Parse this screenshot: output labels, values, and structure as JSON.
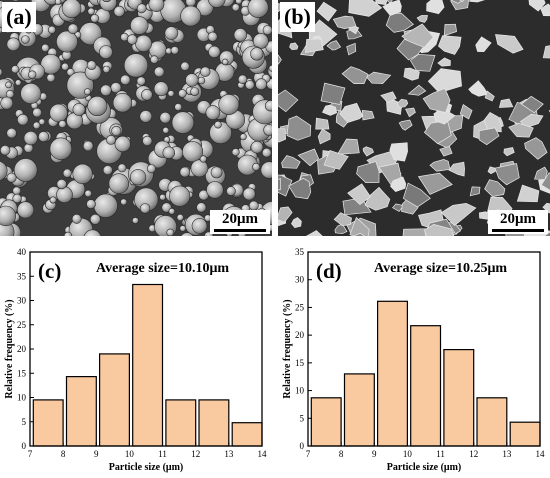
{
  "panels": {
    "a": {
      "label": "(a)",
      "scale_bar": "20μm"
    },
    "b": {
      "label": "(b)",
      "scale_bar": "20μm"
    }
  },
  "chart_data": [
    {
      "type": "bar",
      "label": "(c)",
      "annotation": "Average size=10.10μm",
      "xlabel": "Particle size (μm)",
      "ylabel": "Relative frequency (%)",
      "xlim": [
        7,
        14
      ],
      "ylim": [
        0,
        40
      ],
      "xticks": [
        7,
        8,
        9,
        10,
        11,
        12,
        13,
        14
      ],
      "yticks": [
        0,
        5,
        10,
        15,
        20,
        25,
        30,
        35,
        40
      ],
      "bins": [
        [
          7.1,
          8.0
        ],
        [
          8.1,
          9.0
        ],
        [
          9.1,
          10.0
        ],
        [
          10.1,
          11.0
        ],
        [
          11.1,
          12.0
        ],
        [
          12.1,
          13.0
        ],
        [
          13.1,
          14.0
        ]
      ],
      "values": [
        9.5,
        14.3,
        19.0,
        33.3,
        9.5,
        9.5,
        4.8
      ],
      "bar_color": "#f9c9a0",
      "grid": false
    },
    {
      "type": "bar",
      "label": "(d)",
      "annotation": "Average size=10.25μm",
      "xlabel": "Particle size (μm)",
      "ylabel": "Relative frequency (%)",
      "xlim": [
        7,
        14
      ],
      "ylim": [
        0,
        35
      ],
      "xticks": [
        7,
        8,
        9,
        10,
        11,
        12,
        13,
        14
      ],
      "yticks": [
        0,
        5,
        10,
        15,
        20,
        25,
        30,
        35
      ],
      "bins": [
        [
          7.1,
          8.0
        ],
        [
          8.1,
          9.0
        ],
        [
          9.1,
          10.0
        ],
        [
          10.1,
          11.0
        ],
        [
          11.1,
          12.0
        ],
        [
          12.1,
          13.0
        ],
        [
          13.1,
          14.0
        ]
      ],
      "values": [
        8.7,
        13.0,
        26.1,
        21.7,
        17.4,
        8.7,
        4.3
      ],
      "bar_color": "#f9c9a0",
      "grid": false
    }
  ]
}
